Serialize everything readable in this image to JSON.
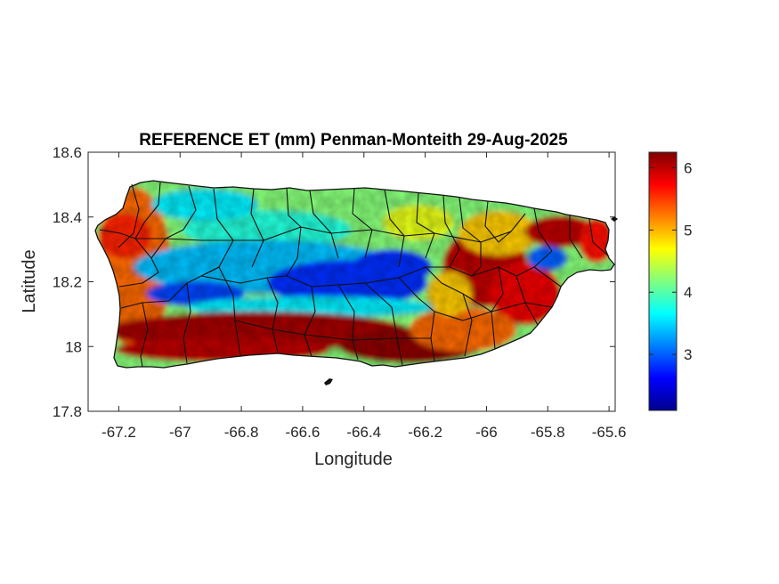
{
  "title": "REFERENCE ET (mm) Penman-Monteith 29-Aug-2025",
  "chart_data": {
    "type": "heatmap",
    "title": "REFERENCE ET (mm) Penman-Monteith 29-Aug-2025",
    "xlabel": "Longitude",
    "ylabel": "Latitude",
    "xlim": [
      -67.3,
      -65.58
    ],
    "ylim": [
      17.8,
      18.6
    ],
    "x_ticks": [
      -67.2,
      -67,
      -66.8,
      -66.6,
      -66.4,
      -66.2,
      -66,
      -65.8,
      -65.6
    ],
    "x_tick_labels": [
      "-67.2",
      "-67",
      "-66.8",
      "-66.6",
      "-66.4",
      "-66.2",
      "-66",
      "-65.8",
      "-65.6"
    ],
    "y_ticks": [
      17.8,
      18,
      18.2,
      18.4,
      18.6
    ],
    "y_tick_labels": [
      "17.8",
      "18",
      "18.2",
      "18.4",
      "18.6"
    ],
    "colorbar": {
      "colormap": "jet",
      "range": [
        2.1,
        6.25
      ],
      "ticks": [
        3,
        4,
        5,
        6
      ],
      "tick_labels": [
        "3",
        "4",
        "5",
        "6"
      ]
    },
    "grid": false,
    "field_summary": {
      "south_coast": 6.1,
      "central_mountains": 2.8,
      "north_coast": 4.2,
      "west_coast": 5.3,
      "east_interior": 6.0,
      "northeast_tip": 6.0,
      "el_yunque": 3.0
    }
  }
}
